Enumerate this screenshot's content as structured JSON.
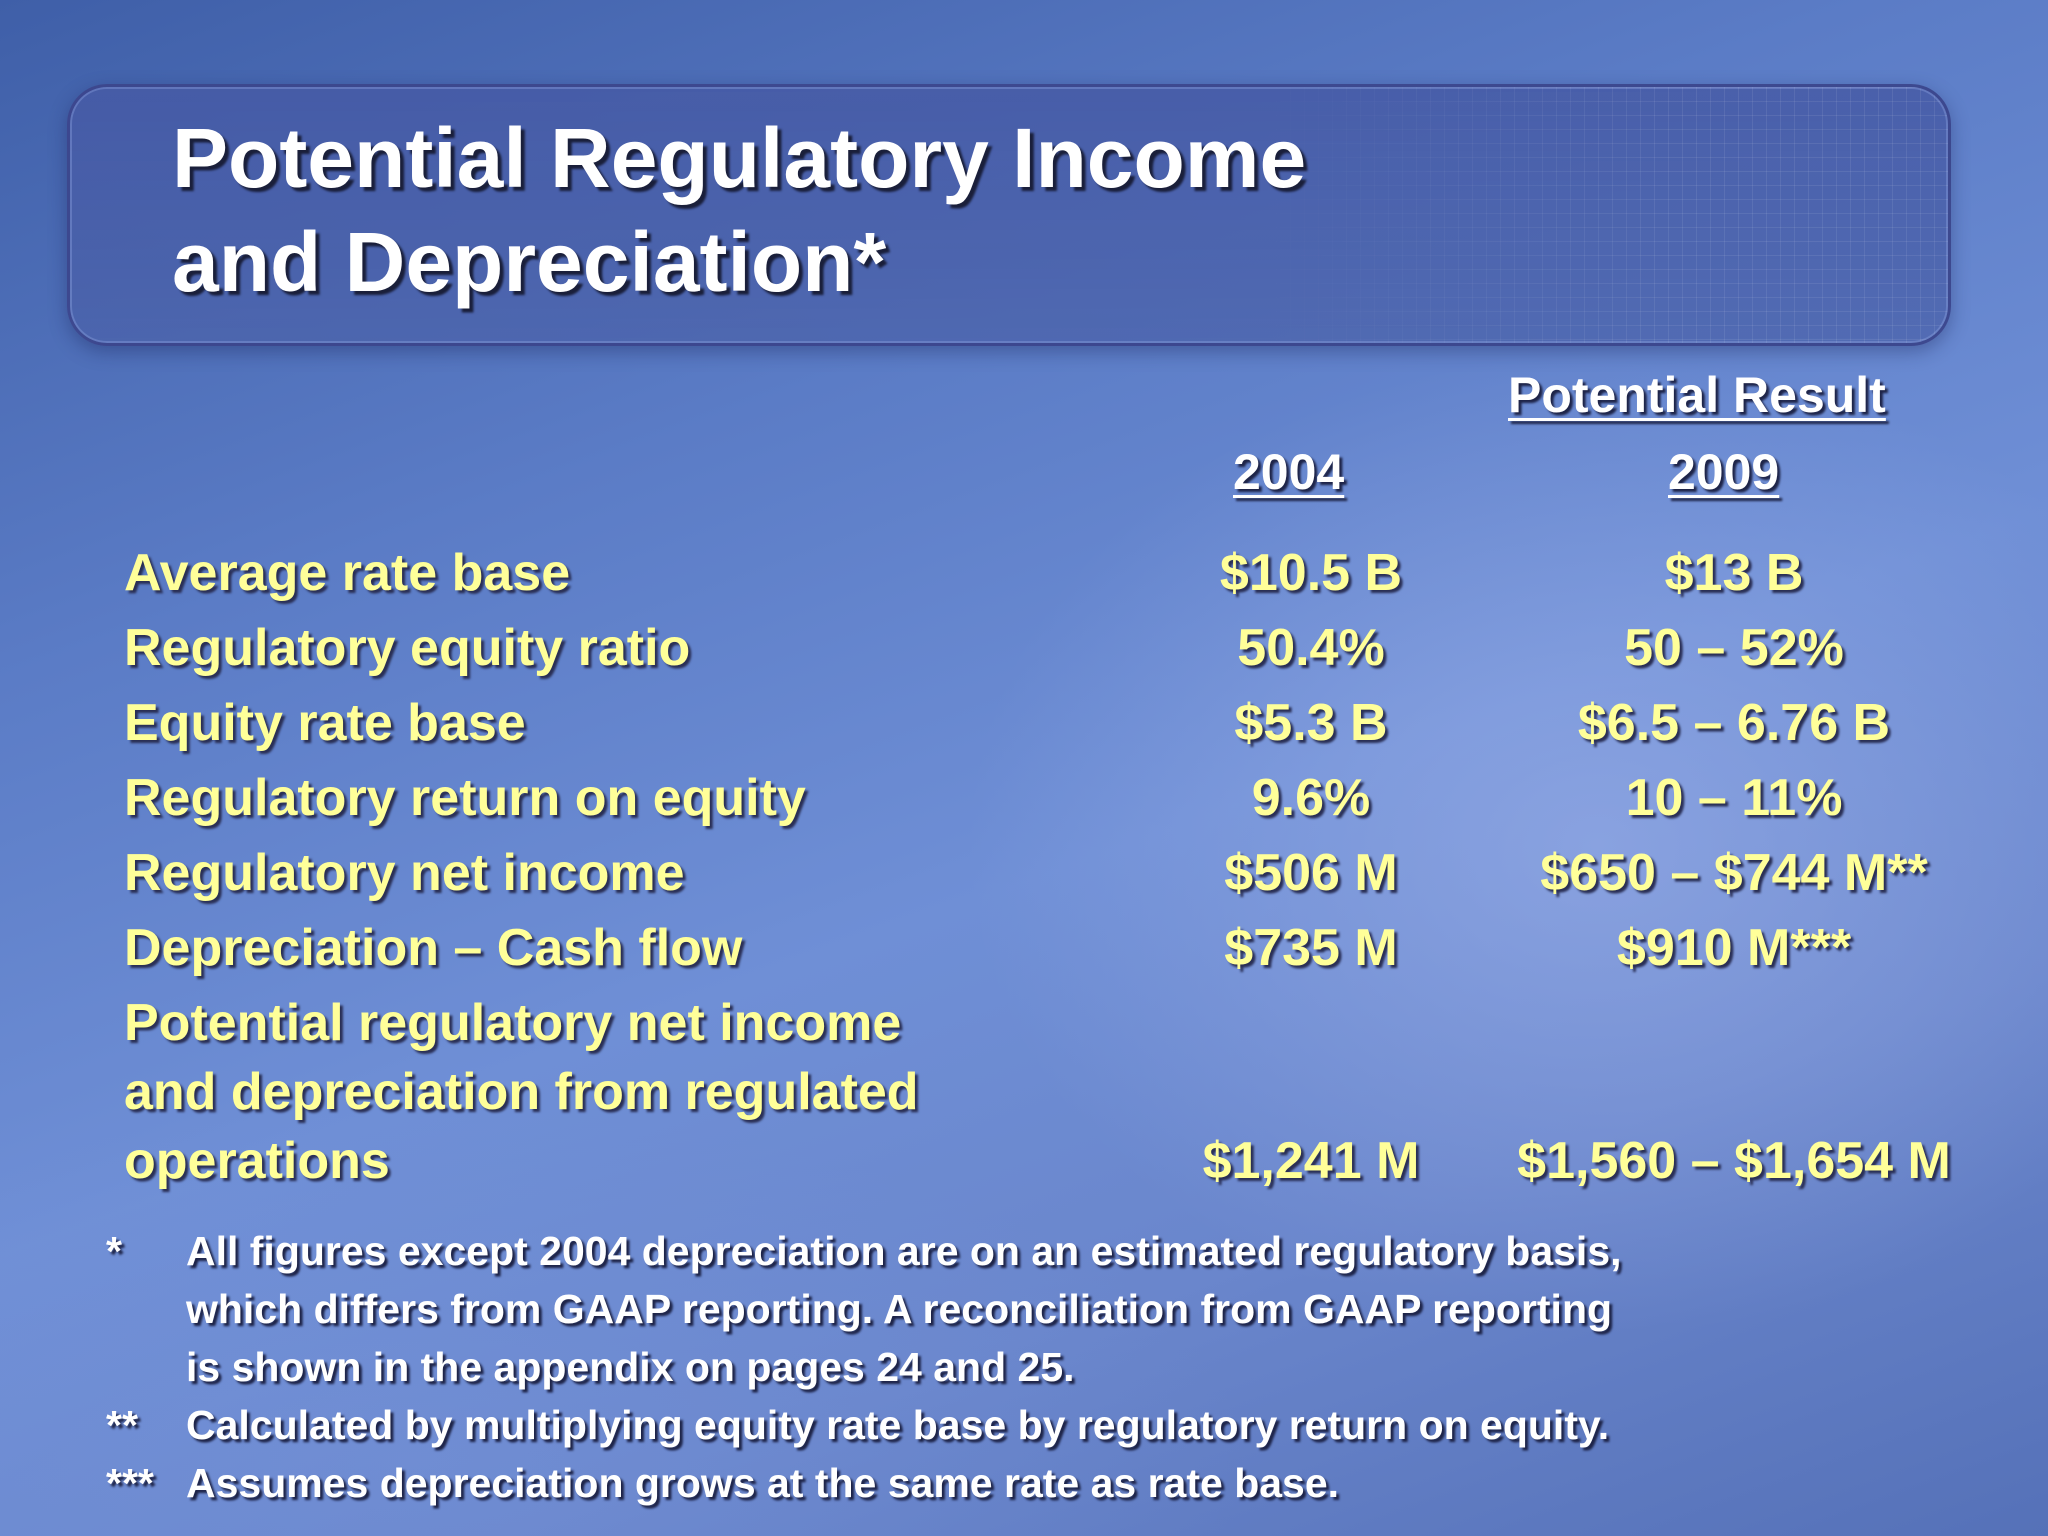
{
  "title": {
    "line1": "Potential Regulatory Income",
    "line2": "and Depreciation*"
  },
  "table": {
    "headers": {
      "col1_year": "2004",
      "col2_label": "Potential Result",
      "col2_year": "2009"
    },
    "rows": [
      {
        "label": "Average rate base",
        "v2004": "$10.5 B",
        "v2009": "$13 B"
      },
      {
        "label": "Regulatory equity ratio",
        "v2004": "50.4%",
        "v2009": "50 – 52%"
      },
      {
        "label": "Equity rate base",
        "v2004": "$5.3 B",
        "v2009": "$6.5 – 6.76 B"
      },
      {
        "label": "Regulatory return on equity",
        "v2004": "9.6%",
        "v2009": "10 – 11%"
      },
      {
        "label": "Regulatory net income",
        "v2004": "$506 M",
        "v2009": "$650 – $744 M**"
      },
      {
        "label": "Depreciation – Cash flow",
        "v2004": "$735 M",
        "v2009": "$910 M***"
      }
    ],
    "total": {
      "label_line1": "Potential regulatory net income",
      "label_line2": "and depreciation from regulated",
      "label_line3": "operations",
      "v2004": "$1,241 M",
      "v2009": "$1,560 – $1,654 M"
    }
  },
  "footnotes": [
    {
      "mark": "*",
      "line1": "All figures except 2004 depreciation are on an estimated regulatory basis,",
      "line2": "which differs from GAAP reporting.  A reconciliation from GAAP reporting",
      "line3": "is shown in the appendix on pages 24 and 25."
    },
    {
      "mark": "**",
      "line1": "Calculated by multiplying equity rate base by regulatory return on equity."
    },
    {
      "mark": "***",
      "line1": "Assumes depreciation grows at the same rate as rate base."
    }
  ]
}
